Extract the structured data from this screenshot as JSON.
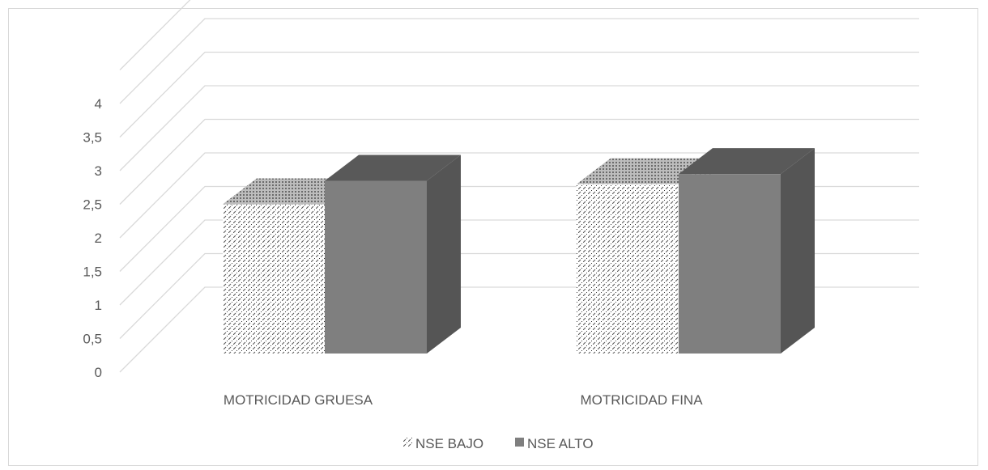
{
  "chart_data": {
    "type": "bar",
    "title": "",
    "xlabel": "",
    "ylabel": "",
    "categories": [
      "MOTRICIDAD GRUESA",
      "MOTRICIDAD FINA"
    ],
    "series": [
      {
        "name": "NSE BAJO",
        "values": [
          2.5,
          2.8
        ]
      },
      {
        "name": "NSE ALTO",
        "values": [
          2.85,
          2.95
        ]
      }
    ],
    "ylim": [
      0,
      4
    ],
    "yticks": [
      "0",
      "0,5",
      "1",
      "1,5",
      "2",
      "2,5",
      "3",
      "3,5",
      "4"
    ],
    "grid": true,
    "legend_position": "bottom",
    "colors": {
      "nse_bajo_pattern": "#4d4d4d",
      "nse_alto_front": "#7f7f7f",
      "nse_alto_side": "#555555",
      "nse_alto_top": "#595959",
      "grid": "#d9d9d9",
      "text": "#595959"
    }
  }
}
